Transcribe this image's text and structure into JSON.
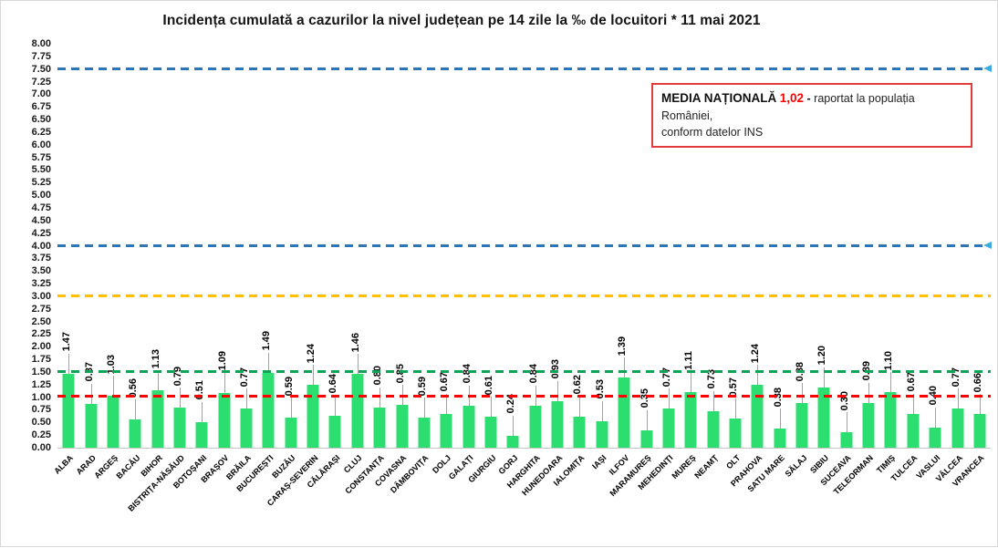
{
  "title": "Incidența cumulată a cazurilor la nivel județean pe 14 zile la ‰ de locuitori *  11 mai 2021",
  "national_average_box": {
    "label": "MEDIA NAȚIONALĂ",
    "value": "1,02",
    "dash": "-",
    "description_line1": "raportat la populația României,",
    "description_line2": "conform datelor INS"
  },
  "chart_data": {
    "type": "bar",
    "title": "Incidența cumulată a cazurilor la nivel județean pe 14 zile la ‰ de locuitori *  11 mai 2021",
    "xlabel": "",
    "ylabel": "",
    "ylim": [
      0,
      8
    ],
    "grid": false,
    "legend_position": "none",
    "bar_color": "#2bde6f",
    "leader_line_color": "#a3a3a3",
    "categories": [
      "ALBA",
      "ARAD",
      "ARGEȘ",
      "BACĂU",
      "BIHOR",
      "BISTRIȚA-NĂSĂUD",
      "BOTOȘANI",
      "BRAȘOV",
      "BRĂILA",
      "BUCUREȘTI",
      "BUZĂU",
      "CARAȘ-SEVERIN",
      "CĂLĂRAȘI",
      "CLUJ",
      "CONSTANȚA",
      "COVASNA",
      "DÂMBOVIȚA",
      "DOLJ",
      "GALAȚI",
      "GIURGIU",
      "GORJ",
      "HARGHITA",
      "HUNEDOARA",
      "IALOMIȚA",
      "IAȘI",
      "ILFOV",
      "MARAMUREȘ",
      "MEHEDINȚI",
      "MUREȘ",
      "NEAMȚ",
      "OLT",
      "PRAHOVA",
      "SATU MARE",
      "SĂLAJ",
      "SIBIU",
      "SUCEAVA",
      "TELEORMAN",
      "TIMIȘ",
      "TULCEA",
      "VASLUI",
      "VÂLCEA",
      "VRANCEA"
    ],
    "values": [
      1.47,
      0.87,
      1.03,
      0.56,
      1.13,
      0.79,
      0.51,
      1.09,
      0.77,
      1.49,
      0.59,
      1.24,
      0.64,
      1.46,
      0.8,
      0.85,
      0.59,
      0.67,
      0.84,
      0.61,
      0.24,
      0.84,
      0.93,
      0.62,
      0.53,
      1.39,
      0.35,
      0.77,
      1.11,
      0.73,
      0.57,
      1.24,
      0.38,
      0.88,
      1.2,
      0.3,
      0.89,
      1.1,
      0.67,
      0.4,
      0.77,
      0.66
    ],
    "yticks": [
      "0.00",
      "0.25",
      "0.50",
      "0.75",
      "1.00",
      "1.25",
      "1.50",
      "1.75",
      "2.00",
      "2.25",
      "2.50",
      "2.75",
      "3.00",
      "3.25",
      "3.50",
      "3.75",
      "4.00",
      "4.25",
      "4.50",
      "4.75",
      "5.00",
      "5.25",
      "5.50",
      "5.75",
      "6.00",
      "6.25",
      "6.50",
      "6.75",
      "7.00",
      "7.25",
      "7.50",
      "7.75",
      "8.00"
    ],
    "reference_lines": [
      {
        "value": 7.5,
        "color": "#2e75b6",
        "style": "dashed",
        "arrow": true,
        "arrow_color": "#3fa9dc",
        "meaning": "threshold 7.5"
      },
      {
        "value": 4.0,
        "color": "#2e75b6",
        "style": "dashed",
        "arrow": true,
        "arrow_color": "#3fa9dc",
        "meaning": "threshold 4.0"
      },
      {
        "value": 3.0,
        "color": "#ffc000",
        "style": "dashed",
        "arrow": false,
        "meaning": "threshold 3.0"
      },
      {
        "value": 1.5,
        "color": "#0fa357",
        "style": "dashed",
        "arrow": false,
        "meaning": "threshold 1.5"
      },
      {
        "value": 1.02,
        "color": "#ff0000",
        "style": "dashed",
        "arrow": false,
        "meaning": "media națională 1,02"
      }
    ]
  }
}
